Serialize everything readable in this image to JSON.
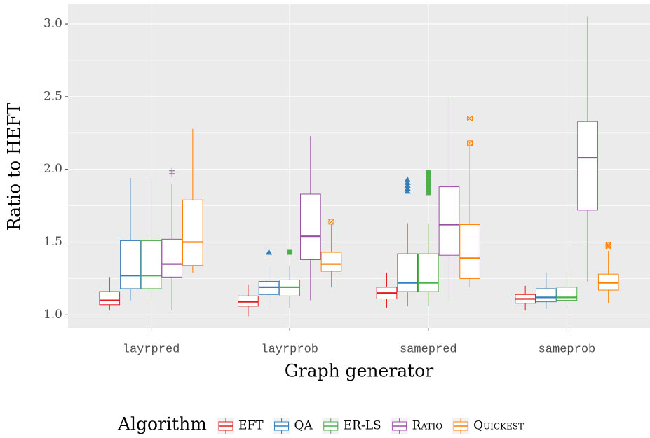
{
  "chart_data": {
    "type": "box",
    "x_label": "Graph generator",
    "y_label": "Ratio to HEFT",
    "legend_title": "Algorithm",
    "legend_position": "bottom",
    "grid": true,
    "categories": [
      "layrpred",
      "layrprob",
      "samepred",
      "sameprob"
    ],
    "ylim": [
      0.91,
      3.14
    ],
    "yticks": [
      {
        "value": 1,
        "label": "1.0"
      },
      1.5,
      {
        "value": 2,
        "label": "2.0"
      },
      2.5,
      {
        "value": 3,
        "label": "3.0"
      }
    ],
    "yminor": [
      1.25,
      1.75,
      2.25,
      2.75
    ],
    "series": [
      {
        "name": "EFT",
        "color": "#e41a1c",
        "shape": "circle",
        "low": [
          1.03,
          0.99,
          1.05,
          1.03
        ],
        "q1": [
          1.07,
          1.06,
          1.11,
          1.08
        ],
        "median": [
          1.1,
          1.09,
          1.15,
          1.11
        ],
        "q3": [
          1.16,
          1.13,
          1.19,
          1.14
        ],
        "high": [
          1.26,
          1.21,
          1.29,
          1.2
        ],
        "outliers": [
          [],
          [],
          [],
          []
        ]
      },
      {
        "name": "QA",
        "color": "#377eb8",
        "shape": "triangle",
        "low": [
          1.1,
          1.05,
          1.06,
          1.04
        ],
        "q1": [
          1.18,
          1.14,
          1.16,
          1.09
        ],
        "median": [
          1.27,
          1.19,
          1.22,
          1.12
        ],
        "q3": [
          1.51,
          1.23,
          1.42,
          1.18
        ],
        "high": [
          1.94,
          1.34,
          1.63,
          1.29
        ],
        "outliers": [
          [],
          [
            1.43
          ],
          [
            1.85,
            1.87,
            1.89,
            1.91,
            1.93
          ],
          []
        ]
      },
      {
        "name": "ER-LS",
        "color": "#4daf4a",
        "shape": "square",
        "low": [
          1.1,
          1.05,
          1.06,
          1.05
        ],
        "q1": [
          1.18,
          1.13,
          1.16,
          1.1
        ],
        "median": [
          1.27,
          1.19,
          1.22,
          1.12
        ],
        "q3": [
          1.51,
          1.24,
          1.42,
          1.19
        ],
        "high": [
          1.94,
          1.34,
          1.63,
          1.29
        ],
        "outliers": [
          [],
          [
            1.43
          ],
          [
            1.84,
            1.86,
            1.88,
            1.9,
            1.92,
            1.94,
            1.96,
            1.98
          ],
          []
        ]
      },
      {
        "name": "Ratio",
        "color": "#984ea3",
        "shape": "plus",
        "low": [
          1.03,
          1.1,
          1.1,
          1.23
        ],
        "q1": [
          1.26,
          1.38,
          1.41,
          1.72
        ],
        "median": [
          1.35,
          1.54,
          1.62,
          2.08
        ],
        "q3": [
          1.52,
          1.83,
          1.88,
          2.33
        ],
        "high": [
          1.9,
          2.23,
          2.5,
          3.05
        ],
        "outliers": [
          [
            1.97,
            1.99
          ],
          [],
          [],
          []
        ]
      },
      {
        "name": "Quickest",
        "color": "#ff7f00",
        "shape": "square-cross",
        "low": [
          1.29,
          1.19,
          1.19,
          1.08
        ],
        "q1": [
          1.34,
          1.3,
          1.25,
          1.17
        ],
        "median": [
          1.5,
          1.35,
          1.39,
          1.22
        ],
        "q3": [
          1.79,
          1.43,
          1.62,
          1.28
        ],
        "high": [
          2.28,
          1.62,
          2.17,
          1.44
        ],
        "outliers": [
          [],
          [
            1.64
          ],
          [
            2.18,
            2.35
          ],
          [
            1.47,
            1.48
          ]
        ]
      }
    ]
  }
}
